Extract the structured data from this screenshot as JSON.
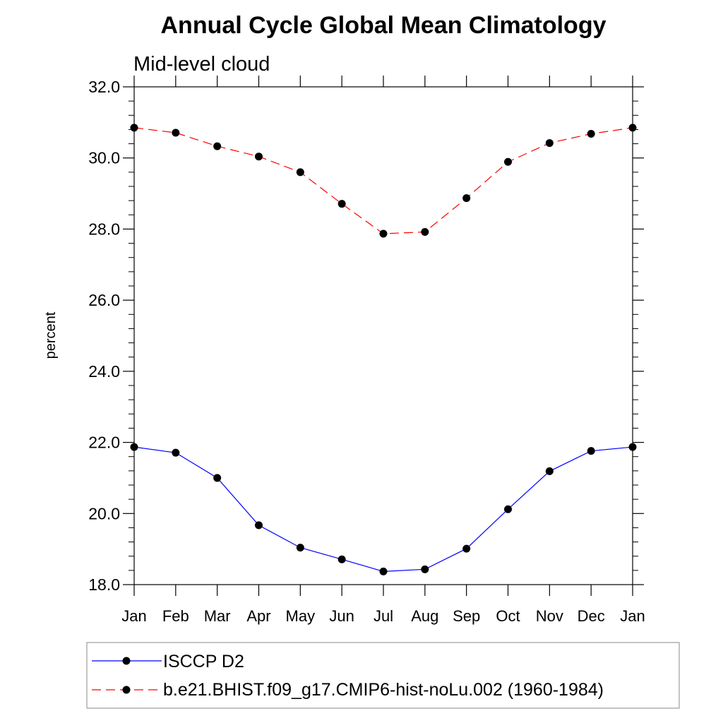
{
  "chart_data": {
    "type": "line",
    "title": "Annual Cycle Global Mean Climatology",
    "subtitle": "Mid-level cloud",
    "ylabel": "percent",
    "xlabel": "",
    "categories": [
      "Jan",
      "Feb",
      "Mar",
      "Apr",
      "May",
      "Jun",
      "Jul",
      "Aug",
      "Sep",
      "Oct",
      "Nov",
      "Dec",
      "Jan"
    ],
    "ylim": [
      18.0,
      32.0
    ],
    "yticks": [
      "18.0",
      "20.0",
      "22.0",
      "24.0",
      "26.0",
      "28.0",
      "30.0",
      "32.0"
    ],
    "grid": false,
    "legend_position": "bottom",
    "series": [
      {
        "name": "ISCCP D2",
        "color": "#0000ff",
        "line_style": "solid",
        "marker": "filled-circle",
        "values": [
          21.87,
          21.71,
          21.0,
          19.67,
          19.04,
          18.71,
          18.37,
          18.43,
          19.01,
          20.12,
          21.19,
          21.76,
          21.87
        ]
      },
      {
        "name": "b.e21.BHIST.f09_g17.CMIP6-hist-noLu.002 (1960-1984)",
        "color": "#ff0000",
        "line_style": "dashed",
        "marker": "filled-circle",
        "values": [
          30.85,
          30.71,
          30.33,
          30.04,
          29.6,
          28.71,
          27.87,
          27.92,
          28.87,
          29.89,
          30.42,
          30.68,
          30.85
        ]
      }
    ]
  }
}
